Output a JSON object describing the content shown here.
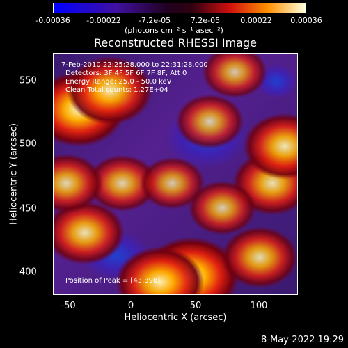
{
  "colorbar": {
    "ticks": [
      "-0.00036",
      "-0.00022",
      "-7.2e-05",
      "7.2e-05",
      "0.00022",
      "0.00036"
    ],
    "units_label": "(photons cm⁻² s⁻¹ asec⁻²)"
  },
  "chart_data": {
    "type": "heatmap",
    "title": "Reconstructed RHESSI Image",
    "xlabel": "Heliocentric X (arcsec)",
    "ylabel": "Heliocentric Y (arcsec)",
    "xlim": [
      -65,
      130
    ],
    "ylim": [
      380,
      575
    ],
    "x_ticks": [
      -50,
      0,
      50,
      100
    ],
    "y_ticks": [
      400,
      450,
      500,
      550
    ],
    "colormap_range": [
      -0.00036,
      0.00036
    ],
    "annotations": [
      "7-Feb-2010 22:25:28.000 to 22:31:28.000",
      "Detectors: 3F 4F 5F 6F 7F 8F, Att 0",
      "Energy Range: 25.0 - 50.0 keV",
      "Clean      Total counts: 1.27E+04"
    ],
    "peak_label": "Position of Peak = [43,398]",
    "hot_regions": [
      {
        "x": -45,
        "y": 530,
        "intensity": 0.95
      },
      {
        "x": -20,
        "y": 545,
        "intensity": 0.8
      },
      {
        "x": 45,
        "y": 395,
        "intensity": 1.0
      },
      {
        "x": 20,
        "y": 390,
        "intensity": 0.85
      },
      {
        "x": 110,
        "y": 470,
        "intensity": 0.7
      },
      {
        "x": 120,
        "y": 500,
        "intensity": 0.75
      },
      {
        "x": 100,
        "y": 410,
        "intensity": 0.65
      },
      {
        "x": -40,
        "y": 430,
        "intensity": 0.7
      },
      {
        "x": -10,
        "y": 470,
        "intensity": 0.55
      },
      {
        "x": 60,
        "y": 520,
        "intensity": 0.5
      },
      {
        "x": 80,
        "y": 560,
        "intensity": 0.45
      },
      {
        "x": -55,
        "y": 470,
        "intensity": 0.6
      },
      {
        "x": 30,
        "y": 470,
        "intensity": 0.45
      },
      {
        "x": 70,
        "y": 450,
        "intensity": 0.5
      }
    ]
  },
  "footer_date": "8-May-2022 19:29"
}
